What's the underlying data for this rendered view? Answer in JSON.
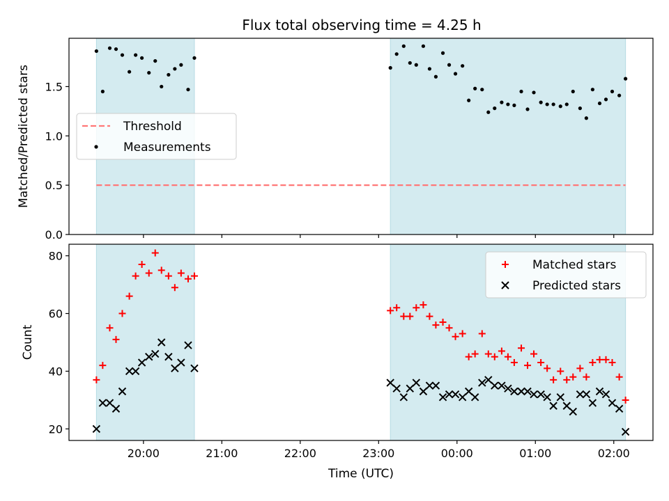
{
  "figure": {
    "title": "Flux total observing time = 4.25 h"
  },
  "chart_data": [
    {
      "type": "scatter",
      "panel": "top",
      "title": "Flux total observing time = 4.25 h",
      "xlabel": "",
      "ylabel": "Matched/Predicted stars",
      "x_unit": "hours after 00:00 UTC",
      "xlim": [
        -4.95,
        2.5
      ],
      "ylim": [
        0.0,
        1.99
      ],
      "yticks": [
        "0.0",
        "0.5",
        "1.0",
        "1.5"
      ],
      "grid": false,
      "legend_position": "center-left",
      "shaded_intervals": [
        [
          -4.6,
          -3.35
        ],
        [
          -0.85,
          2.15
        ]
      ],
      "threshold": {
        "name": "Threshold",
        "value": 0.5,
        "x_range": [
          -4.6,
          2.15
        ],
        "color": "#ff7777"
      },
      "series": [
        {
          "name": "Measurements",
          "color": "#000000",
          "marker": "dot",
          "x": [
            -4.6,
            -4.52,
            -4.43,
            -4.35,
            -4.27,
            -4.18,
            -4.1,
            -4.02,
            -3.93,
            -3.85,
            -3.77,
            -3.68,
            -3.6,
            -3.52,
            -3.43,
            -3.35,
            -0.85,
            -0.77,
            -0.68,
            -0.6,
            -0.52,
            -0.43,
            -0.35,
            -0.27,
            -0.18,
            -0.1,
            -0.02,
            0.07,
            0.15,
            0.23,
            0.32,
            0.4,
            0.48,
            0.57,
            0.65,
            0.73,
            0.82,
            0.9,
            0.98,
            1.07,
            1.15,
            1.23,
            1.32,
            1.4,
            1.48,
            1.57,
            1.65,
            1.73,
            1.82,
            1.9,
            1.98,
            2.07,
            2.15
          ],
          "y": [
            1.86,
            1.45,
            1.89,
            1.88,
            1.82,
            1.65,
            1.82,
            1.79,
            1.64,
            1.76,
            1.5,
            1.62,
            1.68,
            1.72,
            1.47,
            1.79,
            1.69,
            1.83,
            1.91,
            1.74,
            1.72,
            1.91,
            1.68,
            1.6,
            1.84,
            1.72,
            1.63,
            1.71,
            1.36,
            1.48,
            1.47,
            1.24,
            1.28,
            1.34,
            1.32,
            1.31,
            1.45,
            1.27,
            1.44,
            1.34,
            1.32,
            1.32,
            1.3,
            1.32,
            1.45,
            1.28,
            1.18,
            1.47,
            1.33,
            1.37,
            1.45,
            1.41,
            1.58
          ]
        }
      ]
    },
    {
      "type": "scatter",
      "panel": "bottom",
      "title": "",
      "xlabel": "Time (UTC)",
      "ylabel": "Count",
      "x_unit": "hours after 00:00 UTC",
      "xlim": [
        -4.95,
        2.5
      ],
      "ylim": [
        16,
        84
      ],
      "yticks": [
        "20",
        "40",
        "60",
        "80"
      ],
      "xtick_labels": [
        "20:00",
        "21:00",
        "22:00",
        "23:00",
        "00:00",
        "01:00",
        "02:00"
      ],
      "xtick_values": [
        -4,
        -3,
        -2,
        -1,
        0,
        1,
        2
      ],
      "grid": false,
      "legend_position": "top-right",
      "shaded_intervals": [
        [
          -4.6,
          -3.35
        ],
        [
          -0.85,
          2.15
        ]
      ],
      "series": [
        {
          "name": "Matched stars",
          "color": "#ff0000",
          "marker": "plus",
          "x": [
            -4.6,
            -4.52,
            -4.43,
            -4.35,
            -4.27,
            -4.18,
            -4.1,
            -4.02,
            -3.93,
            -3.85,
            -3.77,
            -3.68,
            -3.6,
            -3.52,
            -3.43,
            -3.35,
            -0.85,
            -0.77,
            -0.68,
            -0.6,
            -0.52,
            -0.43,
            -0.35,
            -0.27,
            -0.18,
            -0.1,
            -0.02,
            0.07,
            0.15,
            0.23,
            0.32,
            0.4,
            0.48,
            0.57,
            0.65,
            0.73,
            0.82,
            0.9,
            0.98,
            1.07,
            1.15,
            1.23,
            1.32,
            1.4,
            1.48,
            1.57,
            1.65,
            1.73,
            1.82,
            1.9,
            1.98,
            2.07,
            2.15
          ],
          "y": [
            37,
            42,
            55,
            51,
            60,
            66,
            73,
            77,
            74,
            81,
            75,
            73,
            69,
            74,
            72,
            73,
            61,
            62,
            59,
            59,
            62,
            63,
            59,
            56,
            57,
            55,
            52,
            53,
            45,
            46,
            53,
            46,
            45,
            47,
            45,
            43,
            48,
            42,
            46,
            43,
            41,
            37,
            40,
            37,
            38,
            41,
            38,
            43,
            44,
            44,
            43,
            38,
            30
          ]
        },
        {
          "name": "Predicted stars",
          "color": "#000000",
          "marker": "x",
          "x": [
            -4.6,
            -4.52,
            -4.43,
            -4.35,
            -4.27,
            -4.18,
            -4.1,
            -4.02,
            -3.93,
            -3.85,
            -3.77,
            -3.68,
            -3.6,
            -3.52,
            -3.43,
            -3.35,
            -0.85,
            -0.77,
            -0.68,
            -0.6,
            -0.52,
            -0.43,
            -0.35,
            -0.27,
            -0.18,
            -0.1,
            -0.02,
            0.07,
            0.15,
            0.23,
            0.32,
            0.4,
            0.48,
            0.57,
            0.65,
            0.73,
            0.82,
            0.9,
            0.98,
            1.07,
            1.15,
            1.23,
            1.32,
            1.4,
            1.48,
            1.57,
            1.65,
            1.73,
            1.82,
            1.9,
            1.98,
            2.07,
            2.15
          ],
          "y": [
            20,
            29,
            29,
            27,
            33,
            40,
            40,
            43,
            45,
            46,
            50,
            45,
            41,
            43,
            49,
            41,
            36,
            34,
            31,
            34,
            36,
            33,
            35,
            35,
            31,
            32,
            32,
            31,
            33,
            31,
            36,
            37,
            35,
            35,
            34,
            33,
            33,
            33,
            32,
            32,
            31,
            28,
            31,
            28,
            26,
            32,
            32,
            29,
            33,
            32,
            29,
            27,
            19
          ]
        }
      ]
    }
  ]
}
